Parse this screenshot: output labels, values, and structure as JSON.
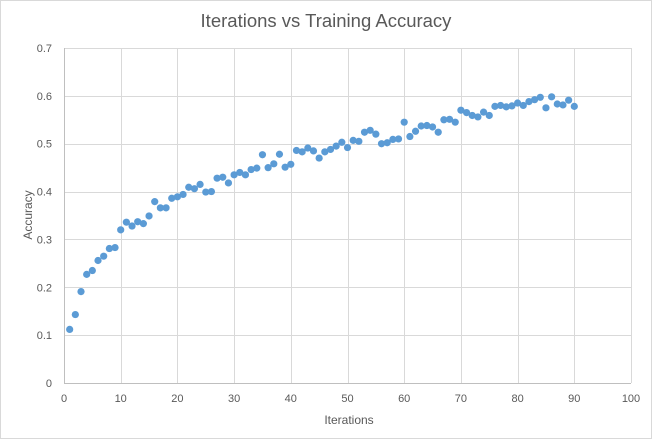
{
  "chart_data": {
    "type": "scatter",
    "title": "Iterations vs Training Accuracy",
    "xlabel": "Iterations",
    "ylabel": "Accuracy",
    "xlim": [
      0,
      100
    ],
    "ylim": [
      0,
      0.7
    ],
    "x_ticks": [
      0,
      10,
      20,
      30,
      40,
      50,
      60,
      70,
      80,
      90,
      100
    ],
    "y_ticks": [
      0,
      0.1,
      0.2,
      0.3,
      0.4,
      0.5,
      0.6,
      0.7
    ],
    "x_tick_labels": [
      "0",
      "10",
      "20",
      "30",
      "40",
      "50",
      "60",
      "70",
      "80",
      "90",
      "100"
    ],
    "y_tick_labels": [
      "0",
      "0.1",
      "0.2",
      "0.3",
      "0.4",
      "0.5",
      "0.6",
      "0.7"
    ],
    "grid": true,
    "legend": "none",
    "marker_color": "#5b9bd5",
    "series": [
      {
        "x": [
          1,
          2,
          3,
          4,
          5,
          6,
          7,
          8,
          9,
          10,
          11,
          12,
          13,
          14,
          15,
          16,
          17,
          18,
          19,
          20,
          21,
          22,
          23,
          24,
          25,
          26,
          27,
          28,
          29,
          30,
          31,
          32,
          33,
          34,
          35,
          36,
          37,
          38,
          39,
          40,
          41,
          42,
          43,
          44,
          45,
          46,
          47,
          48,
          49,
          50,
          51,
          52,
          53,
          54,
          55,
          56,
          57,
          58,
          59,
          60,
          61,
          62,
          63,
          64,
          65,
          66,
          67,
          68,
          69,
          70,
          71,
          72,
          73,
          74,
          75,
          76,
          77,
          78,
          79,
          80,
          81,
          82,
          83,
          84,
          85,
          86,
          87,
          88,
          89,
          90
        ],
        "y": [
          0.112,
          0.143,
          0.191,
          0.227,
          0.235,
          0.256,
          0.265,
          0.281,
          0.283,
          0.32,
          0.336,
          0.328,
          0.337,
          0.333,
          0.349,
          0.379,
          0.366,
          0.366,
          0.386,
          0.389,
          0.394,
          0.409,
          0.406,
          0.415,
          0.399,
          0.4,
          0.428,
          0.43,
          0.418,
          0.435,
          0.44,
          0.435,
          0.446,
          0.449,
          0.477,
          0.45,
          0.458,
          0.478,
          0.451,
          0.457,
          0.486,
          0.483,
          0.491,
          0.485,
          0.47,
          0.483,
          0.488,
          0.495,
          0.503,
          0.492,
          0.507,
          0.505,
          0.524,
          0.528,
          0.52,
          0.5,
          0.502,
          0.509,
          0.51,
          0.545,
          0.515,
          0.526,
          0.537,
          0.538,
          0.535,
          0.524,
          0.55,
          0.551,
          0.545,
          0.57,
          0.565,
          0.559,
          0.556,
          0.566,
          0.559,
          0.578,
          0.58,
          0.577,
          0.579,
          0.585,
          0.58,
          0.588,
          0.592,
          0.597,
          0.575,
          0.598,
          0.583,
          0.581,
          0.591,
          0.578
        ]
      }
    ]
  }
}
